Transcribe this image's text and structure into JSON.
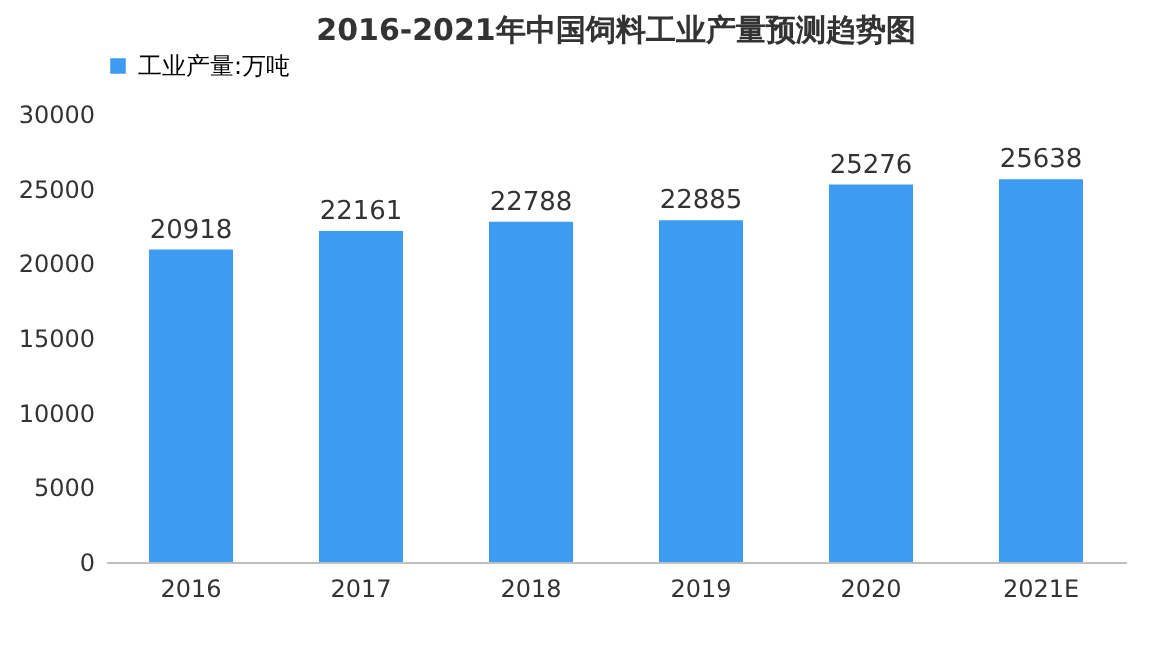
{
  "chart_data": {
    "type": "bar",
    "title": "2016-2021年中国饲料工业产量预测趋势图",
    "categories": [
      "2016",
      "2017",
      "2018",
      "2019",
      "2020",
      "2021E"
    ],
    "series": [
      {
        "name": "工业产量:万吨",
        "color": "#3d9bf2",
        "values": [
          20918,
          22161,
          22788,
          22885,
          25276,
          25638
        ]
      }
    ],
    "ylim": [
      0,
      30000
    ],
    "yticks": [
      0,
      5000,
      10000,
      15000,
      20000,
      25000,
      30000
    ],
    "data_labels": true,
    "legend": "top",
    "grid": false
  }
}
